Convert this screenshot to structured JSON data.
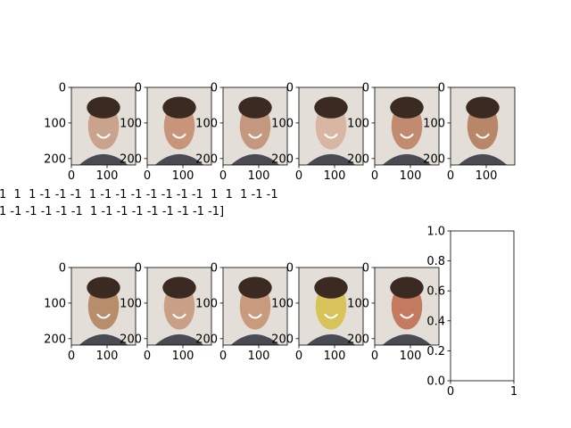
{
  "figure": {
    "background": "#ffffff",
    "label_lines": [
      "1  1  1 -1 -1 -1  1 -1 -1 -1 -1 -1 -1 -1  1  1  1 -1 -1",
      "1 -1 -1 -1 -1 -1  1 -1 -1 -1 -1 -1 -1 -1 -1]"
    ]
  },
  "chart_data": [
    {
      "type": "image",
      "xticks": [
        "0",
        "100"
      ],
      "yticks": [
        "0",
        "100",
        "200"
      ],
      "image_width": 180,
      "image_height": 218,
      "tone": "#c9a38c"
    },
    {
      "type": "image",
      "xticks": [
        "0",
        "100"
      ],
      "yticks": [
        "0",
        "100",
        "200"
      ],
      "image_width": 180,
      "image_height": 218,
      "tone": "#c8947a"
    },
    {
      "type": "image",
      "xticks": [
        "0",
        "100"
      ],
      "yticks": [
        "0",
        "100",
        "200"
      ],
      "image_width": 180,
      "image_height": 218,
      "tone": "#c4977f"
    },
    {
      "type": "image",
      "xticks": [
        "0",
        "100"
      ],
      "yticks": [
        "0",
        "100",
        "200"
      ],
      "image_width": 180,
      "image_height": 218,
      "tone": "#d8b6a3"
    },
    {
      "type": "image",
      "xticks": [
        "0",
        "100"
      ],
      "yticks": [
        "0",
        "100",
        "200"
      ],
      "image_width": 180,
      "image_height": 218,
      "tone": "#c28a6f"
    },
    {
      "type": "image",
      "xticks": [
        "0",
        "100"
      ],
      "yticks": [
        "0",
        "100",
        "200"
      ],
      "image_width": 180,
      "image_height": 218,
      "tone": "#b8876a"
    },
    {
      "type": "image",
      "xticks": [
        "0",
        "100"
      ],
      "yticks": [
        "0",
        "100",
        "200"
      ],
      "image_width": 180,
      "image_height": 218,
      "tone": "#b88d6b"
    },
    {
      "type": "image",
      "xticks": [
        "0",
        "100"
      ],
      "yticks": [
        "0",
        "100",
        "200"
      ],
      "image_width": 180,
      "image_height": 218,
      "tone": "#c9a086"
    },
    {
      "type": "image",
      "xticks": [
        "0",
        "100"
      ],
      "yticks": [
        "0",
        "100",
        "200"
      ],
      "image_width": 180,
      "image_height": 218,
      "tone": "#c99a7e"
    },
    {
      "type": "image",
      "xticks": [
        "0",
        "100"
      ],
      "yticks": [
        "0",
        "100",
        "200"
      ],
      "image_width": 180,
      "image_height": 218,
      "tone": "#d8c25a"
    },
    {
      "type": "image",
      "xticks": [
        "0",
        "100"
      ],
      "yticks": [
        "0",
        "100",
        "200"
      ],
      "image_width": 180,
      "image_height": 218,
      "tone": "#c47a5f"
    },
    {
      "type": "empty",
      "xlim": [
        0,
        1
      ],
      "ylim": [
        0,
        1
      ],
      "xticks": [
        "0",
        "1"
      ],
      "yticks": [
        "0.0",
        "0.2",
        "0.4",
        "0.6",
        "0.8",
        "1.0"
      ]
    }
  ]
}
